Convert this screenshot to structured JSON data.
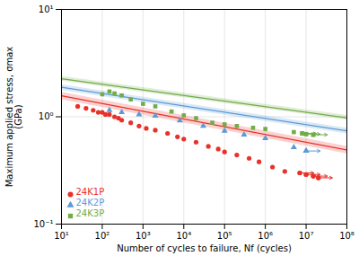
{
  "chart_data": {
    "type": "scatter",
    "xlabel": "Number of cycles to failure, Nf (cycles)",
    "ylabel": "Maximum applied stress, σmax\n(GPa)",
    "log": true,
    "grid": true,
    "legend": "lower left",
    "xlim": [
      10,
      100000000
    ],
    "ylim": [
      0.1,
      10
    ],
    "xticks": [
      {
        "value": 10,
        "label": "10¹"
      },
      {
        "value": 100,
        "label": "10²"
      },
      {
        "value": 1000,
        "label": "10³"
      },
      {
        "value": 10000,
        "label": "10⁴"
      },
      {
        "value": 100000,
        "label": "10⁵"
      },
      {
        "value": 1000000,
        "label": "10⁶"
      },
      {
        "value": 10000000,
        "label": "10⁷"
      },
      {
        "value": 100000000,
        "label": "10⁸"
      }
    ],
    "yticks": [
      {
        "value": 0.1,
        "label": "10⁻¹"
      },
      {
        "value": 1,
        "label": "10⁰"
      },
      {
        "value": 10,
        "label": "10¹"
      }
    ],
    "series": [
      {
        "name": "24K1P",
        "color": "#e8312a",
        "marker": "circle",
        "x": [
          25,
          40,
          60,
          80,
          100,
          120,
          150,
          200,
          250,
          300,
          500,
          800,
          1200,
          2000,
          4000,
          7000,
          10000,
          20000,
          40000,
          70000,
          100000,
          200000,
          400000,
          700000,
          1500000,
          3000000,
          7000000,
          10000000,
          15000000,
          20000000
        ],
        "values": [
          1.25,
          1.2,
          1.15,
          1.1,
          1.1,
          1.05,
          1.05,
          1.0,
          0.97,
          0.93,
          0.88,
          0.82,
          0.78,
          0.75,
          0.7,
          0.65,
          0.62,
          0.58,
          0.53,
          0.5,
          0.47,
          0.44,
          0.41,
          0.38,
          0.34,
          0.31,
          0.3,
          0.29,
          0.28,
          0.27
        ],
        "fit": {
          "x": [
            10,
            100000000
          ],
          "values": [
            1.56737,
            0.491105
          ],
          "lower": [
            1.44198,
            0.451817
          ],
          "upper": [
            1.69276,
            0.530393
          ]
        },
        "runout_x": [
          7000000,
          10000000,
          15000000,
          20000000
        ],
        "runout_y": [
          0.3,
          0.29,
          0.28,
          0.27
        ],
        "runout_x_end": [
          15400000,
          22000000,
          33000000,
          44000000
        ]
      },
      {
        "name": "24K2P",
        "color": "#5b9bd5",
        "marker": "triangle",
        "x": [
          150,
          300,
          800,
          2000,
          8000,
          30000,
          100000,
          300000,
          1000000,
          5000000,
          10000000
        ],
        "values": [
          1.15,
          1.1,
          1.05,
          1.02,
          0.92,
          0.82,
          0.74,
          0.68,
          0.63,
          0.52,
          0.48
        ],
        "fit": {
          "x": [
            10,
            100000000
          ],
          "values": [
            1.881216,
            0.73865
          ],
          "lower": [
            1.768343,
            0.694331
          ],
          "upper": [
            1.994089,
            0.782969
          ]
        },
        "runout_x": [
          10000000
        ],
        "runout_y": [
          0.48
        ],
        "runout_x_end": [
          22000000
        ]
      },
      {
        "name": "24K3P",
        "color": "#70ad47",
        "marker": "square",
        "x": [
          100,
          150,
          200,
          300,
          500,
          1000,
          2000,
          5000,
          10000,
          20000,
          50000,
          100000,
          200000,
          500000,
          1000000,
          5000000,
          8000000,
          10000000,
          15000000
        ],
        "values": [
          1.62,
          1.72,
          1.65,
          1.58,
          1.45,
          1.32,
          1.25,
          1.12,
          1.03,
          0.97,
          0.88,
          0.85,
          0.82,
          0.79,
          0.77,
          0.72,
          0.7,
          0.69,
          0.68
        ],
        "fit": {
          "x": [
            10,
            100000000
          ],
          "values": [
            2.26225,
            0.978453
          ],
          "lower": [
            2.149138,
            0.92953
          ],
          "upper": [
            2.375363,
            1.027376
          ]
        },
        "runout_x": [
          8000000,
          10000000,
          15000000
        ],
        "runout_y": [
          0.7,
          0.69,
          0.68
        ],
        "runout_x_end": [
          17600000,
          22000000,
          33000000
        ]
      }
    ]
  }
}
